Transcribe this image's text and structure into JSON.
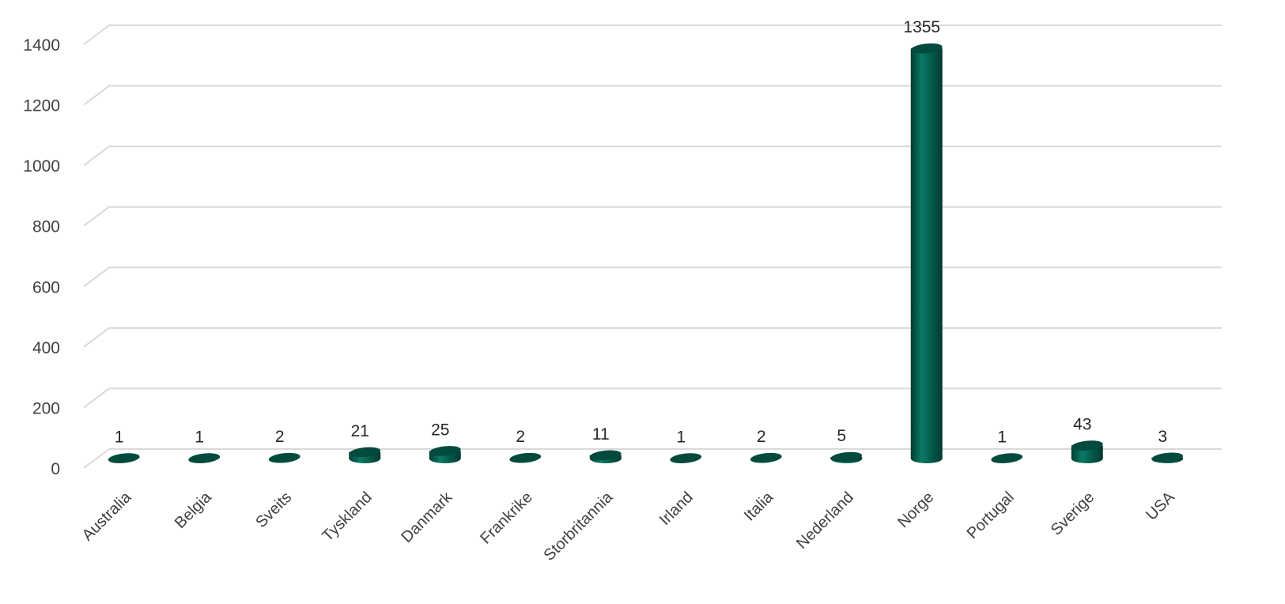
{
  "chart_data": {
    "type": "bar",
    "style": "3d-cylinder",
    "categories": [
      "Australia",
      "Belgia",
      "Sveits",
      "Tyskland",
      "Danmark",
      "Frankrike",
      "Storbritannia",
      "Irland",
      "Italia",
      "Nederland",
      "Norge",
      "Portugal",
      "Sverige",
      "USA"
    ],
    "values": [
      1,
      1,
      2,
      21,
      25,
      2,
      11,
      1,
      2,
      5,
      1355,
      1,
      43,
      3
    ],
    "data_labels": [
      "1",
      "1",
      "2",
      "21",
      "25",
      "2",
      "11",
      "1",
      "2",
      "5",
      "1355",
      "1",
      "43",
      "3"
    ],
    "yticks": [
      "0",
      "200",
      "400",
      "600",
      "800",
      "1000",
      "1200",
      "1400"
    ],
    "ylim": [
      0,
      1400
    ],
    "grid": true,
    "legend": "none",
    "colors": {
      "bar_body": "#03604f",
      "bar_highlight": "#0a7a66",
      "bar_shadow": "#023d32",
      "bar_top": "#024a3d",
      "gridline": "#d9d9d9",
      "text": "#404040"
    }
  }
}
